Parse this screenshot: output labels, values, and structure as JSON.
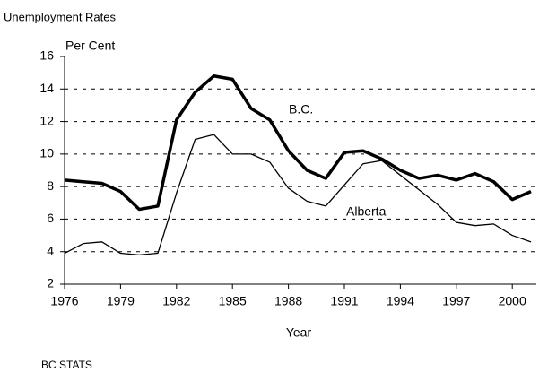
{
  "chart_data": {
    "type": "line",
    "title": "Unemployment Rates",
    "y_label": "Per Cent",
    "x_label": "Year",
    "source": "BC STATS",
    "annotations": [
      "B.C.",
      "Alberta"
    ],
    "x": [
      1976,
      1977,
      1978,
      1979,
      1980,
      1981,
      1982,
      1983,
      1984,
      1985,
      1986,
      1987,
      1988,
      1989,
      1990,
      1991,
      1992,
      1993,
      1994,
      1995,
      1996,
      1997,
      1998,
      1999,
      2000,
      2001
    ],
    "series": [
      {
        "name": "B.C.",
        "color": "#000000",
        "values": [
          8.4,
          8.3,
          8.2,
          7.7,
          6.6,
          6.8,
          12.1,
          13.8,
          14.8,
          14.6,
          12.8,
          12.1,
          10.2,
          9.0,
          8.5,
          10.1,
          10.2,
          9.7,
          9.0,
          8.5,
          8.7,
          8.4,
          8.8,
          8.3,
          7.2,
          7.7
        ]
      },
      {
        "name": "Alberta",
        "color": "#000000",
        "values": [
          3.9,
          4.5,
          4.6,
          3.9,
          3.8,
          3.9,
          7.6,
          10.9,
          11.2,
          10.0,
          10.0,
          9.5,
          7.9,
          7.1,
          6.8,
          8.1,
          9.4,
          9.6,
          8.7,
          7.8,
          6.9,
          5.8,
          5.6,
          5.7,
          5.0,
          4.6
        ]
      }
    ],
    "xlim": [
      1976,
      2001
    ],
    "xticks": [
      1976,
      1979,
      1982,
      1985,
      1988,
      1991,
      1994,
      1997,
      2000
    ],
    "ylim": [
      2,
      16
    ],
    "yticks": [
      2,
      4,
      6,
      8,
      10,
      12,
      14,
      16
    ],
    "grid": true
  }
}
